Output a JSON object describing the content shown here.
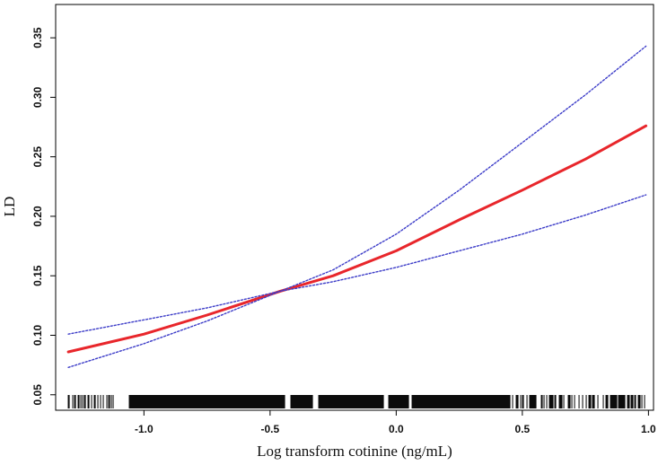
{
  "chart_data": {
    "type": "line",
    "xlabel": "Log transform cotinine (ng/mL)",
    "ylabel": "LD",
    "xlim": [
      -1.35,
      1.02
    ],
    "ylim": [
      0.037,
      0.378
    ],
    "xticks": [
      -1.0,
      -0.5,
      0.0,
      0.5,
      1.0
    ],
    "xtick_labels": [
      "-1.0",
      "-0.5",
      "0.0",
      "0.5",
      "1.0"
    ],
    "yticks": [
      0.05,
      0.1,
      0.15,
      0.2,
      0.25,
      0.3,
      0.35
    ],
    "ytick_labels": [
      "0.05",
      "0.10",
      "0.15",
      "0.20",
      "0.25",
      "0.30",
      "0.35"
    ],
    "grid": false,
    "legend": "none",
    "colors": {
      "fit": "#e8262b",
      "ci": "#3c3cc8",
      "rug": "#000000",
      "axes": "#000000"
    },
    "series": [
      {
        "role": "fit",
        "style": "solid",
        "x": [
          -1.3,
          -1.0,
          -0.75,
          -0.46,
          -0.25,
          0.0,
          0.25,
          0.5,
          0.75,
          0.99
        ],
        "y": [
          0.086,
          0.101,
          0.117,
          0.137,
          0.15,
          0.171,
          0.197,
          0.222,
          0.248,
          0.276
        ]
      },
      {
        "role": "upper-ci",
        "style": "dotted",
        "x": [
          -1.3,
          -1.0,
          -0.75,
          -0.46,
          -0.25,
          0.0,
          0.25,
          0.5,
          0.75,
          0.99
        ],
        "y": [
          0.101,
          0.113,
          0.123,
          0.137,
          0.155,
          0.185,
          0.222,
          0.262,
          0.302,
          0.343
        ]
      },
      {
        "role": "lower-ci",
        "style": "dotted",
        "x": [
          -1.3,
          -1.0,
          -0.75,
          -0.46,
          -0.25,
          0.0,
          0.25,
          0.5,
          0.75,
          0.99
        ],
        "y": [
          0.073,
          0.093,
          0.112,
          0.137,
          0.145,
          0.157,
          0.171,
          0.185,
          0.201,
          0.218
        ]
      }
    ],
    "rug": {
      "x_range": [
        -1.3,
        0.99
      ],
      "gaps": [
        [
          -1.12,
          -1.06
        ],
        [
          -0.44,
          -0.42
        ],
        [
          -0.33,
          -0.31
        ],
        [
          -0.05,
          -0.03
        ],
        [
          0.05,
          0.06
        ]
      ],
      "sparse_segments": [
        [
          -1.3,
          -1.06
        ],
        [
          0.45,
          0.99
        ]
      ]
    }
  }
}
